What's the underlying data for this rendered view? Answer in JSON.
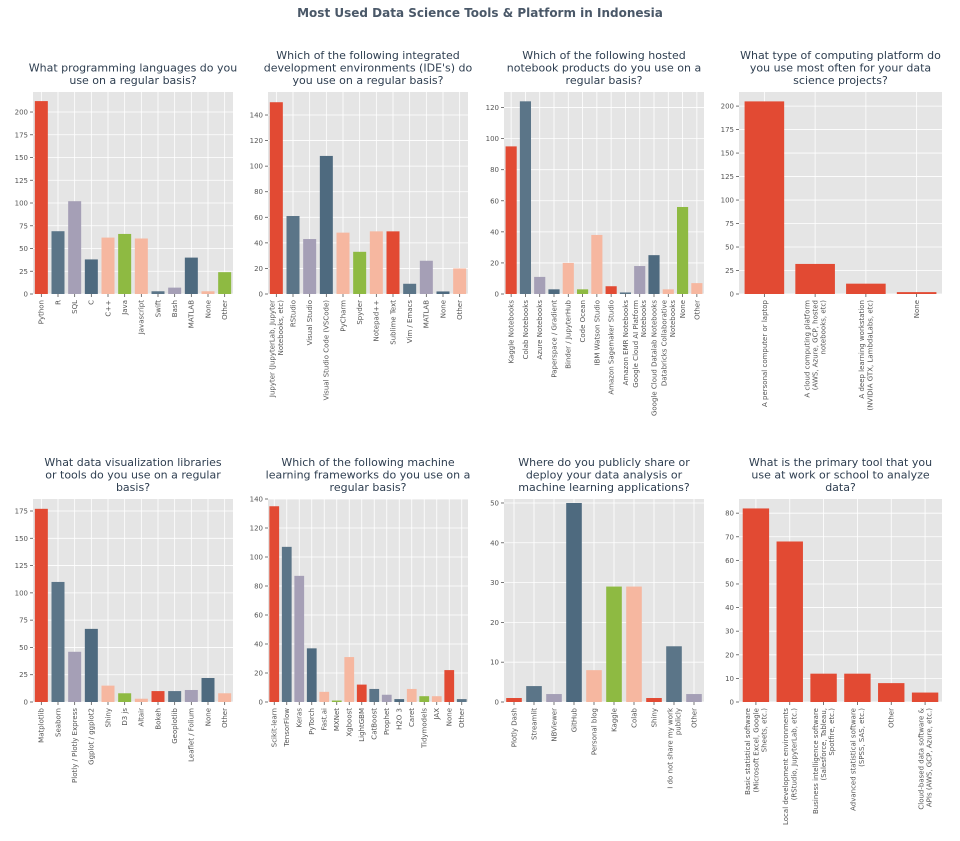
{
  "suptitle": "Most Used Data Science Tools & Platform in Indonesia",
  "colors": {
    "red": "#E24A33",
    "blue": "#5B7588",
    "lavender": "#A59FB6",
    "slate": "#4E6A7F",
    "salmon": "#F6B7A0",
    "green": "#8EBA42",
    "panel": "#E5E5E5",
    "grid": "#FFFFFF",
    "tick": "#555555",
    "title": "#2E3E50"
  },
  "chart_data": [
    {
      "type": "bar",
      "title": [
        "What programming languages do you",
        "use on a regular basis?"
      ],
      "categories": [
        "Python",
        "R",
        "SQL",
        "C",
        "C++",
        "Java",
        "Javascript",
        "Swift",
        "Bash",
        "MATLAB",
        "None",
        "Other"
      ],
      "values": [
        212,
        69,
        102,
        38,
        62,
        66,
        61,
        3,
        7,
        40,
        3,
        24
      ],
      "colors": [
        "red",
        "blue",
        "lavender",
        "slate",
        "salmon",
        "green",
        "salmon",
        "blue",
        "lavender",
        "slate",
        "salmon",
        "green"
      ],
      "ylim": [
        0,
        222
      ],
      "yticks": [
        0,
        25,
        50,
        75,
        100,
        125,
        150,
        175,
        200
      ]
    },
    {
      "type": "bar",
      "title": [
        "Which of the following integrated",
        "development environments (IDE's) do",
        "you use on a regular basis?"
      ],
      "categories": [
        "Jupyter (JupyterLab, Jupyter\nNotebooks, etc)",
        "RStudio",
        "Visual Studio",
        "Visual Studio Code (VSCode)",
        "PyCharm",
        "Spyder",
        "Notepad++",
        "Sublime Text",
        "Vim / Emacs",
        "MATLAB",
        "None",
        "Other"
      ],
      "values": [
        150,
        61,
        43,
        108,
        48,
        33,
        49,
        49,
        8,
        26,
        2,
        20
      ],
      "colors": [
        "red",
        "blue",
        "lavender",
        "slate",
        "salmon",
        "green",
        "salmon",
        "red",
        "blue",
        "lavender",
        "slate",
        "salmon"
      ],
      "ylim": [
        0,
        158
      ],
      "yticks": [
        0,
        20,
        40,
        60,
        80,
        100,
        120,
        140
      ]
    },
    {
      "type": "bar",
      "title": [
        "Which of the following hosted",
        "notebook products do you use on a",
        "regular basis?"
      ],
      "categories": [
        "Kaggle Notebooks",
        "Colab Notebooks",
        "Azure Notebooks",
        "Paperspace / Gradient",
        "Binder / JupyterHub",
        "Code Ocean",
        "IBM Watson Studio",
        "Amazon Sagemaker Studio",
        "Amazon EMR Notebooks",
        "Google Cloud AI Platform\nNotebooks",
        "Google Cloud Datalab Notebooks",
        "Databricks Collaborative\nNotebooks",
        "None",
        "Other"
      ],
      "values": [
        95,
        124,
        11,
        3,
        20,
        3,
        38,
        5,
        1,
        18,
        25,
        3,
        56,
        7
      ],
      "colors": [
        "red",
        "blue",
        "lavender",
        "slate",
        "salmon",
        "green",
        "salmon",
        "red",
        "blue",
        "lavender",
        "slate",
        "salmon",
        "green",
        "salmon"
      ],
      "ylim": [
        0,
        130
      ],
      "yticks": [
        0,
        20,
        40,
        60,
        80,
        100,
        120
      ]
    },
    {
      "type": "bar",
      "title": [
        "What type of computing platform do",
        "you use most often for your data",
        "science projects?"
      ],
      "categories": [
        "A personal computer or laptop",
        "A cloud computing platform\n(AWS, Azure, GCP, hosted\nnotebooks, etc)",
        "A deep learning workstation\n(NVIDIA GTX, LambdaLabs, etc)",
        "None"
      ],
      "values": [
        205,
        32,
        11,
        2
      ],
      "colors": [
        "red",
        "red",
        "red",
        "red"
      ],
      "ylim": [
        0,
        215
      ],
      "yticks": [
        0,
        25,
        50,
        75,
        100,
        125,
        150,
        175,
        200
      ]
    },
    {
      "type": "bar",
      "title": [
        "What data visualization libraries",
        "or tools do you use on a regular",
        "basis?"
      ],
      "categories": [
        "Matplotlib",
        "Seaborn",
        "Plotly / Plotly Express",
        "Ggplot / ggplot2",
        "Shiny",
        "D3 js",
        "Altair",
        "Bokeh",
        "Geoplotlib",
        "Leaflet / Folium",
        "None",
        "Other"
      ],
      "values": [
        177,
        110,
        46,
        67,
        15,
        8,
        3,
        10,
        10,
        11,
        22,
        8
      ],
      "colors": [
        "red",
        "blue",
        "lavender",
        "slate",
        "salmon",
        "green",
        "salmon",
        "red",
        "blue",
        "lavender",
        "slate",
        "salmon"
      ],
      "ylim": [
        0,
        186
      ],
      "yticks": [
        0,
        25,
        50,
        75,
        100,
        125,
        150,
        175
      ]
    },
    {
      "type": "bar",
      "title": [
        "Which of the following machine",
        "learning frameworks do you use on a",
        "regular basis?"
      ],
      "categories": [
        "Scikit-learn",
        "TensorFlow",
        "Keras",
        "PyTorch",
        "Fast.ai",
        "MXNet",
        "Xgboost",
        "LightGBM",
        "CatBoost",
        "Prophet",
        "H2O 3",
        "Caret",
        "Tidymodels",
        "JAX",
        "None",
        "Other"
      ],
      "values": [
        135,
        107,
        87,
        37,
        7,
        1,
        31,
        12,
        9,
        5,
        2,
        9,
        4,
        4,
        22,
        2
      ],
      "colors": [
        "red",
        "blue",
        "lavender",
        "slate",
        "salmon",
        "green",
        "salmon",
        "red",
        "blue",
        "lavender",
        "slate",
        "salmon",
        "green",
        "salmon",
        "red",
        "blue"
      ],
      "ylim": [
        0,
        140
      ],
      "yticks": [
        0,
        20,
        40,
        60,
        80,
        100,
        120,
        140
      ]
    },
    {
      "type": "bar",
      "title": [
        "Where do you publicly share or",
        "deploy your data analysis or",
        "machine learning applications?"
      ],
      "categories": [
        "Plotly Dash",
        "Streamlit",
        "NBViewer",
        "GitHub",
        "Personal blog",
        "Kaggle",
        "Colab",
        "Shiny",
        "I do not share my work\npublicly",
        "Other"
      ],
      "values": [
        1,
        4,
        2,
        50,
        8,
        29,
        29,
        1,
        14,
        2
      ],
      "colors": [
        "red",
        "blue",
        "lavender",
        "slate",
        "salmon",
        "green",
        "salmon",
        "red",
        "blue",
        "lavender"
      ],
      "ylim": [
        0,
        51
      ],
      "yticks": [
        0,
        10,
        20,
        30,
        40,
        50
      ]
    },
    {
      "type": "bar",
      "title": [
        "What is the primary tool that you",
        "use at work or school to analyze",
        "data?"
      ],
      "categories": [
        "Basic statistical software\n(Microsoft Excel, Google\nSheets, etc.)",
        "Local development environments\n(RStudio, JupyterLab, etc.)",
        "Business intelligence software\n(Salesforce, Tableau,\nSpotfire, etc.)",
        "Advanced statistical software\n(SPSS, SAS, etc.)",
        "Other",
        "Cloud-based data software &\nAPIs (AWS, GCP, Azure, etc.)"
      ],
      "values": [
        82,
        68,
        12,
        12,
        8,
        4
      ],
      "colors": [
        "red",
        "red",
        "red",
        "red",
        "red",
        "red"
      ],
      "ylim": [
        0,
        86
      ],
      "yticks": [
        0,
        10,
        20,
        30,
        40,
        50,
        60,
        70,
        80
      ]
    }
  ]
}
